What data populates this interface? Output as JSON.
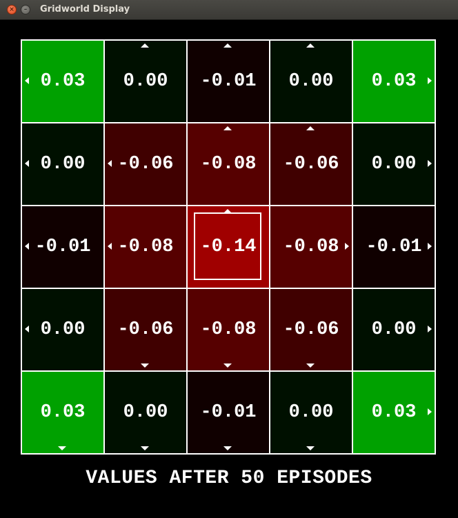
{
  "window": {
    "title": "Gridworld Display"
  },
  "grid": {
    "rows": 5,
    "cols": 5,
    "cells": [
      [
        {
          "value": "0.03",
          "color": "#00a100",
          "arrow": "left"
        },
        {
          "value": "0.00",
          "color": "#001000",
          "arrow": "up"
        },
        {
          "value": "-0.01",
          "color": "#100000",
          "arrow": "up"
        },
        {
          "value": "0.00",
          "color": "#001000",
          "arrow": "up"
        },
        {
          "value": "0.03",
          "color": "#00a100",
          "arrow": "right"
        }
      ],
      [
        {
          "value": "0.00",
          "color": "#001000",
          "arrow": "left"
        },
        {
          "value": "-0.06",
          "color": "#400000",
          "arrow": "left"
        },
        {
          "value": "-0.08",
          "color": "#560000",
          "arrow": "up"
        },
        {
          "value": "-0.06",
          "color": "#400000",
          "arrow": "up"
        },
        {
          "value": "0.00",
          "color": "#001000",
          "arrow": "right"
        }
      ],
      [
        {
          "value": "-0.01",
          "color": "#100000",
          "arrow": "left"
        },
        {
          "value": "-0.08",
          "color": "#560000",
          "arrow": "left"
        },
        {
          "value": "-0.14",
          "color": "#a00000",
          "arrow": "up",
          "current": true
        },
        {
          "value": "-0.08",
          "color": "#560000",
          "arrow": "right"
        },
        {
          "value": "-0.01",
          "color": "#100000",
          "arrow": "right"
        }
      ],
      [
        {
          "value": "0.00",
          "color": "#001000",
          "arrow": "left"
        },
        {
          "value": "-0.06",
          "color": "#400000",
          "arrow": "down"
        },
        {
          "value": "-0.08",
          "color": "#560000",
          "arrow": "down"
        },
        {
          "value": "-0.06",
          "color": "#400000",
          "arrow": "down"
        },
        {
          "value": "0.00",
          "color": "#001000",
          "arrow": "right"
        }
      ],
      [
        {
          "value": "0.03",
          "color": "#00a100",
          "arrow": "down"
        },
        {
          "value": "0.00",
          "color": "#001000",
          "arrow": "down"
        },
        {
          "value": "-0.01",
          "color": "#100000",
          "arrow": "down"
        },
        {
          "value": "0.00",
          "color": "#001000",
          "arrow": "down"
        },
        {
          "value": "0.03",
          "color": "#00a100",
          "arrow": "right"
        }
      ]
    ]
  },
  "caption": "VALUES AFTER 50 EPISODES"
}
